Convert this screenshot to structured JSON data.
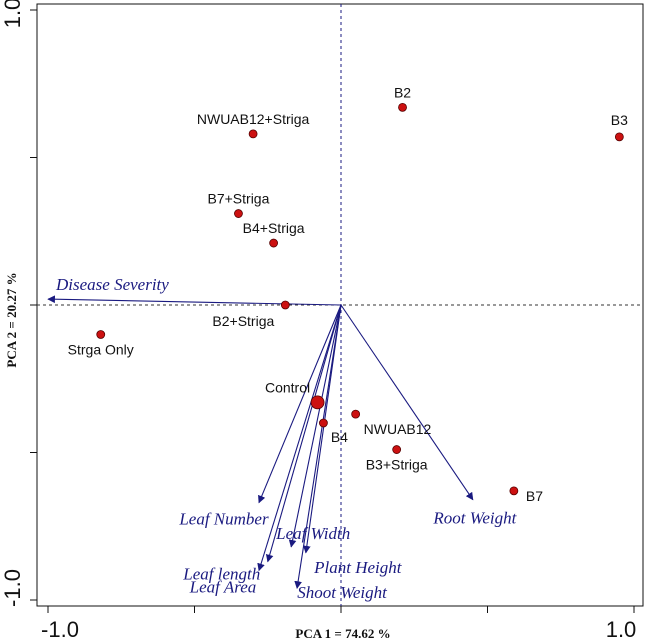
{
  "chart_data": {
    "type": "scatter",
    "title": "",
    "xlabel": "PCA 1 = 74.62 %",
    "ylabel": "PCA 2 = 20.27 %",
    "xlim": [
      -1.0,
      1.0
    ],
    "ylim": [
      -1.0,
      1.0
    ],
    "x_ticks": [
      "-1.0",
      "1.0"
    ],
    "y_ticks": [
      "1.0",
      "-1.0"
    ],
    "grid": false,
    "reference_lines": "dashed lines at x = 0 and y = 0",
    "colors": {
      "points": "#cc1111",
      "vectors": "#1a1a80",
      "ref_vertical": "#1a1a80",
      "ref_horizontal": "#333333"
    },
    "points": [
      {
        "label": "B2",
        "x": 0.21,
        "y": 0.67
      },
      {
        "label": "B3",
        "x": 0.95,
        "y": 0.57
      },
      {
        "label": "NWUAB12+Striga",
        "x": -0.3,
        "y": 0.58
      },
      {
        "label": "B7+Striga",
        "x": -0.35,
        "y": 0.31
      },
      {
        "label": "B4+Striga",
        "x": -0.23,
        "y": 0.21
      },
      {
        "label": "B2+Striga",
        "x": -0.19,
        "y": 0.0
      },
      {
        "label": "Strga Only",
        "x": -0.82,
        "y": -0.1
      },
      {
        "label": "Control",
        "x": -0.08,
        "y": -0.33,
        "size": "large"
      },
      {
        "label": "B4",
        "x": -0.06,
        "y": -0.4
      },
      {
        "label": "NWUAB12",
        "x": 0.05,
        "y": -0.37
      },
      {
        "label": "B3+Striga",
        "x": 0.19,
        "y": -0.49
      },
      {
        "label": "B7",
        "x": 0.59,
        "y": -0.63
      }
    ],
    "vectors": [
      {
        "label": "Disease Severity",
        "x": -1.0,
        "y": 0.02
      },
      {
        "label": "Root Weight",
        "x": 0.45,
        "y": -0.66
      },
      {
        "label": "Leaf Number",
        "x": -0.28,
        "y": -0.67
      },
      {
        "label": "Leaf Width",
        "x": -0.17,
        "y": -0.82
      },
      {
        "label": "Leaf length",
        "x": -0.25,
        "y": -0.87
      },
      {
        "label": "Plant Height",
        "x": -0.12,
        "y": -0.84
      },
      {
        "label": "Leaf Area",
        "x": -0.28,
        "y": -0.9
      },
      {
        "label": "Shoot Weight",
        "x": -0.15,
        "y": -0.96
      }
    ]
  }
}
